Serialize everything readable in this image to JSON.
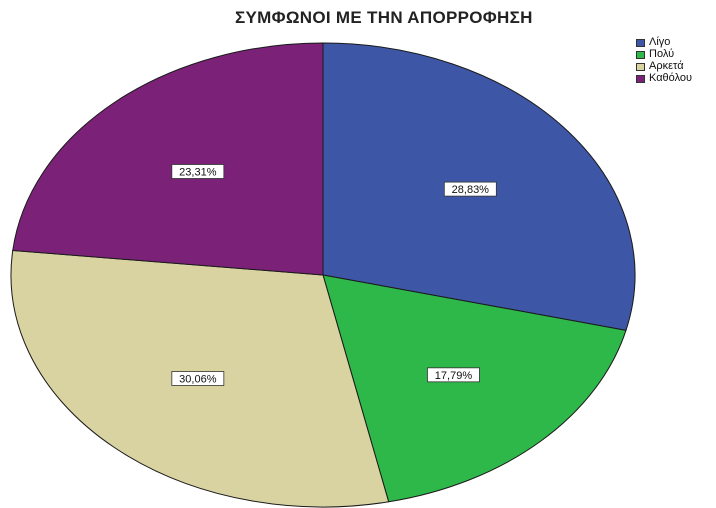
{
  "chart_data": {
    "type": "pie",
    "title": "ΣΥΜΦΩΝΟΙ ΜΕ ΤΗΝ ΑΠΟΡΡΟΦΗΣΗ",
    "categories": [
      "Λίγο",
      "Πολύ",
      "Αρκετά",
      "Καθόλου"
    ],
    "values": [
      28.83,
      17.79,
      30.06,
      23.31
    ],
    "labels": [
      "28,83%",
      "17,79%",
      "30,06%",
      "23,31%"
    ],
    "colors": [
      "#3d56a6",
      "#2eb84a",
      "#d9d3a2",
      "#7b2278"
    ],
    "legend_position": "top-right"
  }
}
